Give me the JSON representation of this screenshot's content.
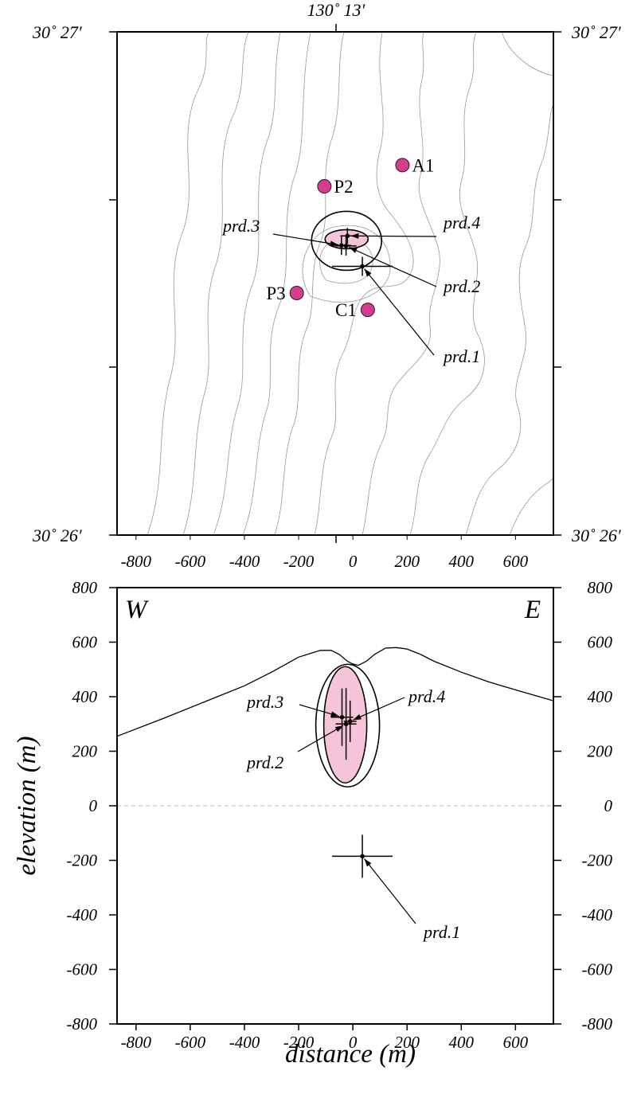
{
  "map": {
    "lat_top": "30˚ 27′",
    "lat_bottom": "30˚ 26′",
    "lon_top": "130˚ 13′"
  },
  "chart_data": [
    {
      "type": "scatter",
      "panel": "map",
      "x_ticks": [
        "-800",
        "-600",
        "-400",
        "-200",
        "0",
        "200",
        "400",
        "600"
      ],
      "xlim": [
        -870,
        740
      ],
      "ylim": [
        -750,
        1100
      ],
      "stations": [
        {
          "name": "A1",
          "x": 183,
          "y": 610,
          "color": "#d63c8e"
        },
        {
          "name": "P2",
          "x": -105,
          "y": 532
        },
        {
          "name": "P3",
          "x": -207,
          "y": 140
        },
        {
          "name": "C1",
          "x": 55,
          "y": 78
        }
      ],
      "estimates": [
        {
          "name": "prd.1",
          "x": 35,
          "y": 238
        },
        {
          "name": "prd.2",
          "x": -25,
          "y": 313
        },
        {
          "name": "prd.3",
          "x": -42,
          "y": 315
        },
        {
          "name": "prd.4",
          "x": -20,
          "y": 350
        }
      ],
      "grid": false
    },
    {
      "type": "scatter",
      "panel": "cross-section",
      "xlabel": "distance (m)",
      "ylabel": "elevation (m)",
      "x_ticks": [
        "-800",
        "-600",
        "-400",
        "-200",
        "0",
        "200",
        "400",
        "600"
      ],
      "y_ticks": [
        "800",
        "600",
        "400",
        "200",
        "0",
        "-200",
        "-400",
        "-600",
        "-800"
      ],
      "xlim": [
        -870,
        740
      ],
      "ylim": [
        -800,
        800
      ],
      "left_label": "W",
      "right_label": "E",
      "estimates": [
        {
          "name": "prd.1",
          "x": 35,
          "y": -185
        },
        {
          "name": "prd.2",
          "x": -25,
          "y": 300
        },
        {
          "name": "prd.3",
          "x": -40,
          "y": 325
        },
        {
          "name": "prd.4",
          "x": -10,
          "y": 310
        }
      ],
      "topography": {
        "x": [
          -870,
          -700,
          -500,
          -400,
          -300,
          -200,
          -120,
          -80,
          -50,
          -20,
          0,
          20,
          50,
          80,
          120,
          160,
          200,
          250,
          300,
          400,
          500,
          600,
          740
        ],
        "y": [
          255,
          320,
          400,
          440,
          490,
          545,
          570,
          570,
          555,
          530,
          520,
          515,
          530,
          555,
          578,
          580,
          575,
          555,
          530,
          490,
          455,
          425,
          385
        ]
      },
      "grid": false
    }
  ]
}
